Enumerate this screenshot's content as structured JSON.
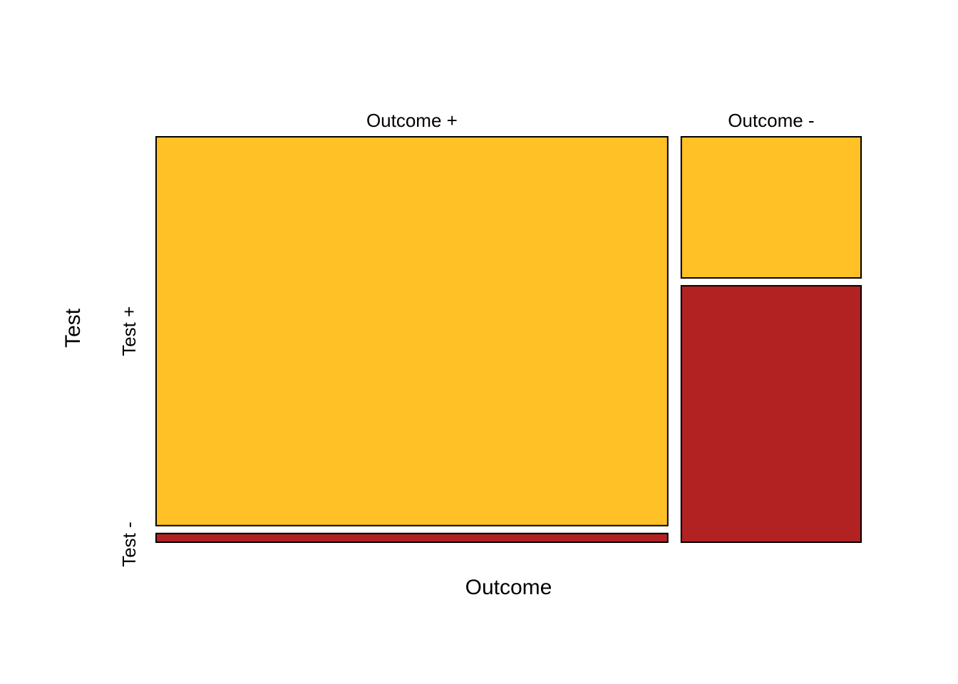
{
  "chart_data": {
    "type": "mosaic",
    "xlabel": "Outcome",
    "ylabel": "Test",
    "columns": [
      "Outcome +",
      "Outcome -"
    ],
    "rows": [
      "Test +",
      "Test -"
    ],
    "column_fractions": [
      0.74,
      0.26
    ],
    "cells": [
      {
        "column": "Outcome +",
        "row": "Test +",
        "fraction_of_column": 0.978,
        "color": "#FFC125"
      },
      {
        "column": "Outcome +",
        "row": "Test -",
        "fraction_of_column": 0.022,
        "color": "#B22222"
      },
      {
        "column": "Outcome -",
        "row": "Test +",
        "fraction_of_column": 0.355,
        "color": "#FFC125"
      },
      {
        "column": "Outcome -",
        "row": "Test -",
        "fraction_of_column": 0.645,
        "color": "#B22222"
      }
    ]
  }
}
